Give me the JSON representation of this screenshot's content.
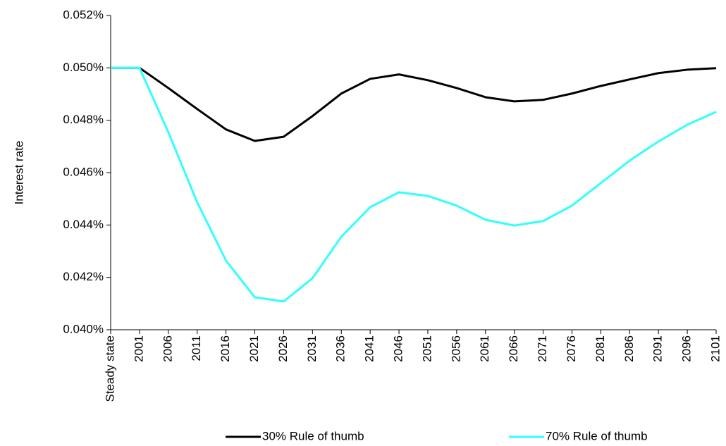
{
  "chart_data": {
    "type": "line",
    "y_label": "Interest rate",
    "categories": [
      "Steady state",
      "2001",
      "2006",
      "2011",
      "2016",
      "2021",
      "2026",
      "2031",
      "2036",
      "2041",
      "2046",
      "2051",
      "2056",
      "2061",
      "2066",
      "2071",
      "2076",
      "2081",
      "2086",
      "2091",
      "2096",
      "2101"
    ],
    "series": [
      {
        "name": "30% Rule of thumb",
        "color": "#000000",
        "values": [
          0.05,
          0.05,
          0.04923,
          0.04843,
          0.04765,
          0.04721,
          0.04737,
          0.04816,
          0.04902,
          0.04958,
          0.04975,
          0.04953,
          0.04923,
          0.04888,
          0.04872,
          0.04878,
          0.04902,
          0.04931,
          0.04956,
          0.0498,
          0.04993,
          0.04999
        ]
      },
      {
        "name": "70% Rule of thumb",
        "color": "#33ffff",
        "values": [
          0.05,
          0.05,
          0.04754,
          0.04487,
          0.04264,
          0.04124,
          0.04108,
          0.04197,
          0.04355,
          0.04468,
          0.04525,
          0.04511,
          0.04474,
          0.0442,
          0.04398,
          0.04415,
          0.04474,
          0.0456,
          0.04646,
          0.04719,
          0.04783,
          0.04832
        ]
      }
    ],
    "ylim": [
      0.04,
      0.052
    ],
    "yticks": [
      {
        "value": 0.04,
        "label": "0.040%"
      },
      {
        "value": 0.042,
        "label": "0.042%"
      },
      {
        "value": 0.044,
        "label": "0.044%"
      },
      {
        "value": 0.046,
        "label": "0.046%"
      },
      {
        "value": 0.048,
        "label": "0.048%"
      },
      {
        "value": 0.05,
        "label": "0.050%"
      },
      {
        "value": 0.052,
        "label": "0.052%"
      }
    ],
    "grid": false,
    "legend": "bottom"
  }
}
